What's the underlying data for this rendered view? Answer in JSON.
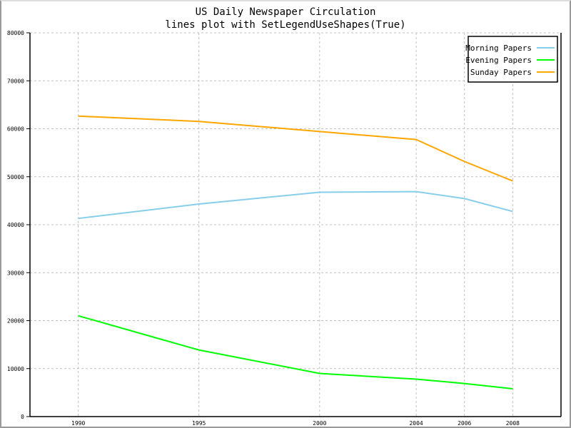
{
  "chart_data": {
    "type": "line",
    "title": "US Daily Newspaper Circulation",
    "subtitle": "lines plot with SetLegendUseShapes(True)",
    "x": [
      1990,
      1995,
      2000,
      2004,
      2006,
      2008
    ],
    "x_tick_labels": [
      "1990",
      "1995",
      "2000",
      "2004",
      "2006",
      "2008"
    ],
    "xlim": [
      1988,
      2010
    ],
    "ylim": [
      0,
      80000
    ],
    "y_ticks": [
      0,
      10000,
      20000,
      30000,
      40000,
      50000,
      60000,
      70000,
      80000
    ],
    "y_tick_labels": [
      "0",
      "10000",
      "20000",
      "30000",
      "40000",
      "50000",
      "60000",
      "70000",
      "80000"
    ],
    "grid": true,
    "legend_position": "top-right",
    "series": [
      {
        "name": "Morning Papers",
        "color": "#87ceeb",
        "values": [
          41311,
          44310,
          46772,
          46887,
          45441,
          42757
        ]
      },
      {
        "name": "Evening Papers",
        "color": "#00ff00",
        "values": [
          21017,
          13883,
          9000,
          7800,
          6900,
          5800
        ]
      },
      {
        "name": "Sunday Papers",
        "color": "#ffa500",
        "values": [
          62635,
          61529,
          59421,
          57754,
          53179,
          49115
        ]
      }
    ]
  }
}
